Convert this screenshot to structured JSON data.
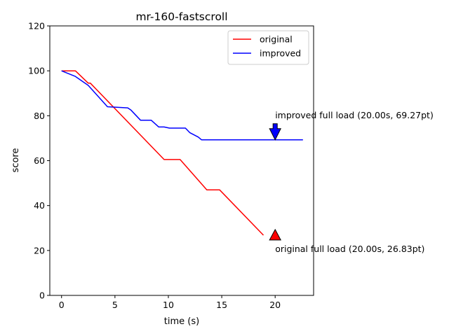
{
  "chart_data": {
    "type": "line",
    "title": "mr-160-fastscroll",
    "xlabel": "time (s)",
    "ylabel": "score",
    "xlim": [
      -1.1,
      23.6
    ],
    "ylim": [
      0,
      120
    ],
    "xticks": [
      0,
      5,
      10,
      15,
      20
    ],
    "yticks": [
      0,
      20,
      40,
      60,
      80,
      100,
      120
    ],
    "grid": false,
    "legend_position": "top-right",
    "series": [
      {
        "name": "original",
        "color": "#ff0000",
        "x": [
          0,
          1.3,
          2.5,
          2.7,
          9.6,
          11.1,
          13.6,
          14.8,
          18.9
        ],
        "y": [
          100,
          100,
          94.5,
          94.5,
          60.5,
          60.5,
          47,
          47,
          26.8
        ]
      },
      {
        "name": "improved",
        "color": "#0000ff",
        "x": [
          0,
          1.3,
          2.5,
          4.3,
          6.2,
          6.5,
          7.4,
          8.4,
          9.1,
          9.6,
          10.1,
          11.6,
          12.0,
          12.8,
          13.1,
          22.6
        ],
        "y": [
          100,
          97.5,
          93.5,
          84,
          83.5,
          82.5,
          78,
          78,
          75,
          75,
          74.5,
          74.5,
          72.5,
          70.5,
          69.3,
          69.3
        ]
      }
    ],
    "annotations": [
      {
        "text": "improved full load (20.00s, 69.27pt)",
        "x": 20.0,
        "y": 69.27,
        "marker": "arrow-down",
        "color": "#0000ff"
      },
      {
        "text": "original full load (20.00s, 26.83pt)",
        "x": 20.0,
        "y": 26.83,
        "marker": "triangle-up",
        "color": "#ff0000"
      }
    ]
  }
}
